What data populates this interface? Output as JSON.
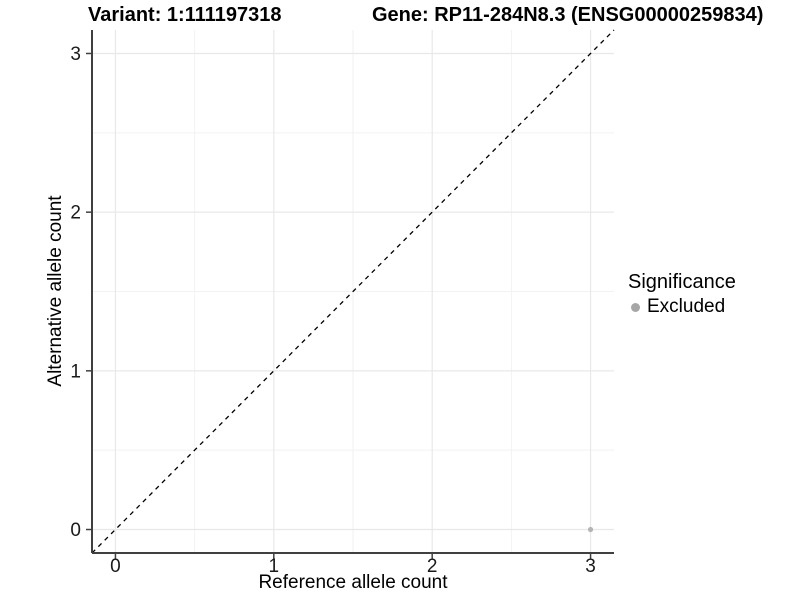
{
  "header": {
    "variant_title": "Variant: 1:111197318",
    "gene_title": "Gene: RP11-284N8.3 (ENSG00000259834)"
  },
  "chart_data": {
    "type": "scatter",
    "xlabel": "Reference allele count",
    "ylabel": "Alternative allele count",
    "x_ticks": [
      0,
      1,
      2,
      3
    ],
    "y_ticks": [
      0,
      1,
      2,
      3
    ],
    "minor_ticks": [
      0.5,
      1.5,
      2.5
    ],
    "xlim": [
      -0.148,
      3.148
    ],
    "ylim": [
      -0.148,
      3.148
    ],
    "grid": {
      "major_color": "#e8e8e8",
      "minor_color": "#f2f2f2",
      "background": "#ffffff"
    },
    "axis_color": "#404040",
    "tick_label_color": "#1a1a1a",
    "reference_line": {
      "type": "identity",
      "equation": "y = x",
      "style": "dashed",
      "color": "#000000"
    },
    "series": [
      {
        "name": "Excluded",
        "color": "#b5b5b5",
        "points": [
          {
            "x": 3,
            "y": 0
          }
        ]
      }
    ],
    "legend": {
      "title": "Significance",
      "position": "right",
      "entries": [
        {
          "label": "Excluded",
          "color": "#a6a6a6"
        }
      ]
    }
  }
}
